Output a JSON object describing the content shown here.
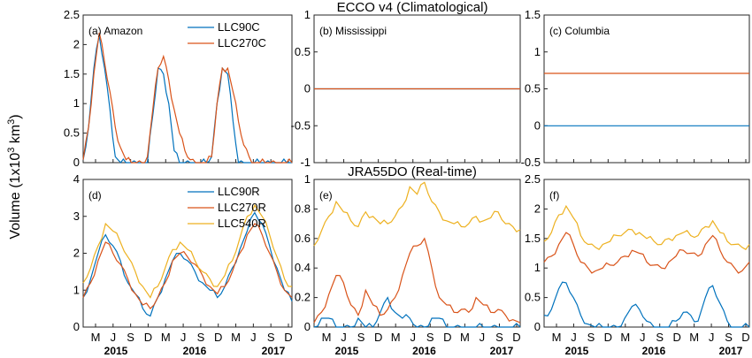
{
  "figure": {
    "ylabel_prefix": "Volume (1x10",
    "ylabel_exp": "3",
    "ylabel_suffix": " km",
    "ylabel_exp2": "3",
    "ylabel_close": ")",
    "row_titles": [
      "ECCO v4 (Climatological)",
      "JRA55DO (Real-time)"
    ],
    "xtick_labels": [
      "M",
      "J",
      "S",
      "D",
      "M",
      "J",
      "S",
      "D",
      "M",
      "J",
      "S",
      "D"
    ],
    "year_labels": [
      "2015",
      "2016",
      "2017"
    ],
    "colors": {
      "blue": "#0072BD",
      "orange": "#D95319",
      "yellow": "#EDB120"
    }
  },
  "chart_data": [
    {
      "type": "line",
      "panel": "(a) Amazon",
      "row": "ECCO v4 (Climatological)",
      "ylim": [
        0,
        2.5
      ],
      "yticks": [
        "0",
        "0.5",
        "1",
        "1.5",
        "2",
        "2.5"
      ],
      "legend": "top-right",
      "x_months": [
        1,
        2,
        3,
        4,
        5,
        6,
        7,
        8,
        9,
        10,
        11,
        12,
        13,
        14,
        15,
        16,
        17,
        18,
        19,
        20,
        21,
        22,
        23,
        24,
        25,
        26,
        27,
        28,
        29,
        30,
        31,
        32,
        33,
        34,
        35,
        36,
        37,
        38,
        39,
        40
      ],
      "series": [
        {
          "name": "LLC90C",
          "color": "#0072BD",
          "values": [
            0.05,
            0.6,
            1.6,
            2.15,
            1.6,
            0.9,
            0.1,
            0,
            0,
            0,
            0,
            0,
            0,
            0.8,
            1.6,
            1.5,
            1.0,
            0.2,
            0,
            0,
            0,
            0,
            0,
            0,
            0.1,
            1.0,
            1.6,
            1.5,
            0.7,
            0,
            0,
            0,
            0,
            0,
            0,
            0,
            0,
            0,
            0,
            0
          ]
        },
        {
          "name": "LLC270C",
          "color": "#D95319",
          "values": [
            0.05,
            0.6,
            1.5,
            2.2,
            1.7,
            1.2,
            0.6,
            0.25,
            0.05,
            0,
            0,
            0,
            0.1,
            0.9,
            1.6,
            1.8,
            1.4,
            0.9,
            0.5,
            0.2,
            0.05,
            0,
            0,
            0,
            0.1,
            1.0,
            1.6,
            1.6,
            1.2,
            0.7,
            0.3,
            0.1,
            0,
            0,
            0,
            0,
            0,
            0,
            0,
            0
          ]
        }
      ]
    },
    {
      "type": "line",
      "panel": "(b) Mississippi",
      "row": "ECCO v4 (Climatological)",
      "ylim": [
        -1,
        1
      ],
      "yticks": [
        "-1",
        "-0.5",
        "0",
        "0.5",
        "1"
      ],
      "series": [
        {
          "name": "",
          "color": "#0072BD",
          "constant": 0
        },
        {
          "name": "",
          "color": "#D95319",
          "constant": 0
        }
      ]
    },
    {
      "type": "line",
      "panel": "(c) Columbia",
      "row": "ECCO v4 (Climatological)",
      "ylim": [
        -0.5,
        1.5
      ],
      "yticks": [
        "-0.5",
        "0",
        "0.5",
        "1",
        "1.5"
      ],
      "series": [
        {
          "name": "",
          "color": "#0072BD",
          "constant": 0
        },
        {
          "name": "",
          "color": "#D95319",
          "constant": 0.71
        }
      ]
    },
    {
      "type": "line",
      "panel": "(d)",
      "row": "JRA55DO (Real-time)",
      "ylim": [
        0,
        4
      ],
      "yticks": [
        "0",
        "1",
        "2",
        "3",
        "4"
      ],
      "legend": "top-right",
      "series": [
        {
          "name": "LLC90R",
          "color": "#0072BD",
          "values": [
            0.8,
            1.3,
            2.0,
            2.5,
            2.2,
            1.8,
            1.2,
            0.9,
            0.5,
            0.3,
            0.8,
            1.3,
            1.8,
            2.0,
            1.8,
            1.5,
            1.2,
            1.0,
            0.8,
            1.1,
            1.6,
            2.1,
            2.6,
            3.1,
            2.8,
            2.2,
            1.6,
            1.0,
            0.7
          ]
        },
        {
          "name": "LLC270R",
          "color": "#D95319",
          "values": [
            0.8,
            1.2,
            1.8,
            2.3,
            2.0,
            1.7,
            1.3,
            0.9,
            0.6,
            0.5,
            0.8,
            1.2,
            1.8,
            2.0,
            1.9,
            1.7,
            1.4,
            1.1,
            0.9,
            1.1,
            1.5,
            2.0,
            2.5,
            2.8,
            2.5,
            2.0,
            1.5,
            1.0,
            0.8
          ]
        },
        {
          "name": "LLC540R",
          "color": "#EDB120",
          "values": [
            1.2,
            1.6,
            2.2,
            2.8,
            2.6,
            2.3,
            1.9,
            1.5,
            1.1,
            0.8,
            1.1,
            1.6,
            2.1,
            2.3,
            2.1,
            1.8,
            1.5,
            1.3,
            1.1,
            1.4,
            1.8,
            2.4,
            3.0,
            3.3,
            3.0,
            2.5,
            1.9,
            1.3,
            1.1
          ]
        }
      ]
    },
    {
      "type": "line",
      "panel": "(e)",
      "row": "JRA55DO (Real-time)",
      "ylim": [
        0,
        1
      ],
      "yticks": [
        "0",
        "0.2",
        "0.4",
        "0.6",
        "0.8",
        "1"
      ],
      "series": [
        {
          "name": "LLC90R",
          "color": "#0072BD",
          "values": [
            0,
            0.06,
            0.06,
            0,
            0,
            0,
            0.06,
            0,
            0,
            0.1,
            0.2,
            0.1,
            0.06,
            0.06,
            0,
            0,
            0.06,
            0.06,
            0,
            0,
            0,
            0,
            0,
            0,
            0,
            0,
            0,
            0,
            0
          ]
        },
        {
          "name": "LLC270R",
          "color": "#D95319",
          "values": [
            0.03,
            0.1,
            0.22,
            0.35,
            0.3,
            0.15,
            0.08,
            0.25,
            0.15,
            0.08,
            0.12,
            0.2,
            0.35,
            0.5,
            0.55,
            0.6,
            0.4,
            0.2,
            0.15,
            0.1,
            0.12,
            0.1,
            0.2,
            0.15,
            0.1,
            0.12,
            0.08,
            0.05,
            0.03
          ]
        },
        {
          "name": "LLC540R",
          "color": "#EDB120",
          "values": [
            0.55,
            0.65,
            0.75,
            0.85,
            0.78,
            0.72,
            0.68,
            0.78,
            0.75,
            0.7,
            0.7,
            0.75,
            0.82,
            0.95,
            0.9,
            0.98,
            0.85,
            0.78,
            0.72,
            0.7,
            0.68,
            0.7,
            0.75,
            0.72,
            0.74,
            0.78,
            0.7,
            0.68,
            0.66
          ]
        }
      ]
    },
    {
      "type": "line",
      "panel": "(f)",
      "row": "JRA55DO (Real-time)",
      "ylim": [
        0,
        2.5
      ],
      "yticks": [
        "0",
        "0.5",
        "1",
        "1.5",
        "2",
        "2.5"
      ],
      "series": [
        {
          "name": "LLC90R",
          "color": "#0072BD",
          "values": [
            0.2,
            0.3,
            0.65,
            0.75,
            0.5,
            0.2,
            0.05,
            0,
            0,
            0,
            0,
            0.15,
            0.35,
            0.3,
            0.1,
            0,
            0,
            0,
            0.1,
            0.25,
            0.2,
            0.1,
            0.5,
            0.7,
            0.4,
            0.1,
            0,
            0,
            0
          ]
        },
        {
          "name": "LLC270R",
          "color": "#D95319",
          "values": [
            1.1,
            1.2,
            1.4,
            1.6,
            1.4,
            1.1,
            1.0,
            0.95,
            1.0,
            1.05,
            1.1,
            1.2,
            1.3,
            1.25,
            1.1,
            1.05,
            1.0,
            1.1,
            1.2,
            1.3,
            1.25,
            1.2,
            1.4,
            1.55,
            1.3,
            1.1,
            1.0,
            0.95,
            1.1
          ]
        },
        {
          "name": "LLC540R",
          "color": "#EDB120",
          "values": [
            1.45,
            1.6,
            1.9,
            2.05,
            1.85,
            1.55,
            1.4,
            1.35,
            1.4,
            1.45,
            1.55,
            1.6,
            1.65,
            1.6,
            1.5,
            1.45,
            1.4,
            1.5,
            1.55,
            1.6,
            1.55,
            1.55,
            1.7,
            1.8,
            1.6,
            1.45,
            1.4,
            1.35,
            1.4
          ]
        }
      ]
    }
  ]
}
